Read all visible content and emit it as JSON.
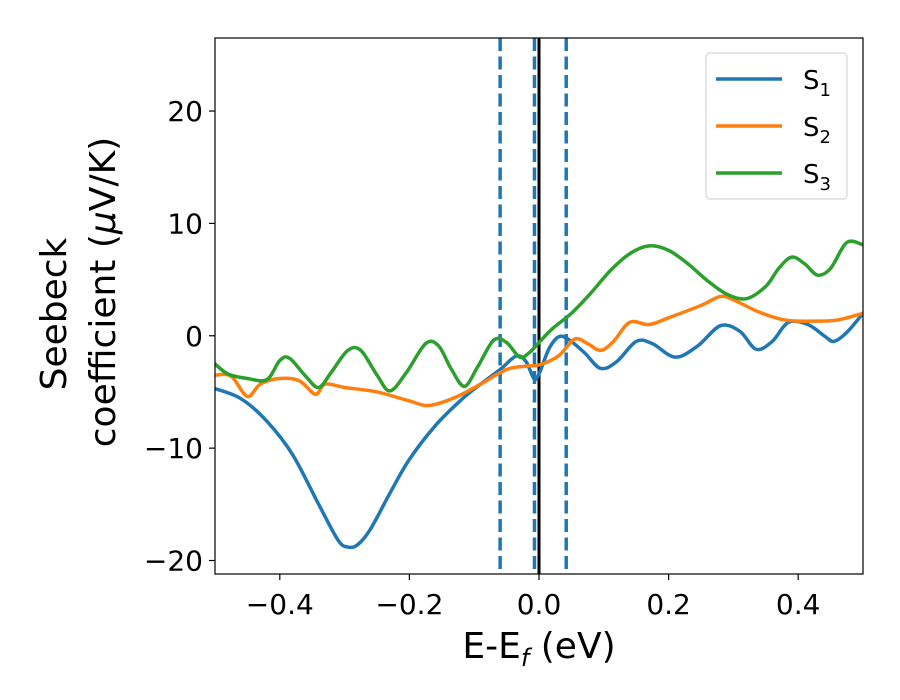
{
  "chart_data": {
    "type": "line",
    "xlabel": "E-E",
    "xlabel_sub": "f",
    "xlabel_unit": " (eV)",
    "ylabel_line1": "Seebeck",
    "ylabel_line2_a": "coefficient  (",
    "ylabel_mu": "μ",
    "ylabel_line2_b": "V/K)",
    "xlim": [
      -0.5,
      0.5
    ],
    "ylim": [
      -21.2,
      26.5
    ],
    "xticks": [
      -0.4,
      -0.2,
      0.0,
      0.2,
      0.4
    ],
    "xtick_labels": [
      "−0.4",
      "−0.2",
      "0.0",
      "0.2",
      "0.4"
    ],
    "yticks": [
      -20,
      -10,
      0,
      10,
      20
    ],
    "ytick_labels": [
      "−20",
      "−10",
      "0",
      "10",
      "20"
    ],
    "grid": false,
    "legend_position": "top-right",
    "vlines": [
      {
        "x": -0.06,
        "style": "dashed",
        "color": "#1f77b4"
      },
      {
        "x": -0.007,
        "style": "dashed",
        "color": "#1f77b4"
      },
      {
        "x": 0.0,
        "style": "solid",
        "color": "#000000"
      },
      {
        "x": 0.042,
        "style": "dashed",
        "color": "#1f77b4"
      }
    ],
    "series": [
      {
        "name": "S",
        "sub": "1",
        "color": "#1f77b4",
        "points": [
          [
            -0.5,
            -4.7
          ],
          [
            -0.46,
            -5.6
          ],
          [
            -0.42,
            -7.6
          ],
          [
            -0.38,
            -10.6
          ],
          [
            -0.34,
            -15.0
          ],
          [
            -0.31,
            -18.2
          ],
          [
            -0.295,
            -18.8
          ],
          [
            -0.28,
            -18.6
          ],
          [
            -0.26,
            -17.2
          ],
          [
            -0.23,
            -14.0
          ],
          [
            -0.2,
            -11.0
          ],
          [
            -0.16,
            -8.0
          ],
          [
            -0.12,
            -5.7
          ],
          [
            -0.09,
            -4.3
          ],
          [
            -0.06,
            -3.0
          ],
          [
            -0.035,
            -1.8
          ],
          [
            -0.02,
            -2.3
          ],
          [
            -0.008,
            -3.8
          ],
          [
            0.0,
            -3.4
          ],
          [
            0.015,
            -1.2
          ],
          [
            0.03,
            -0.1
          ],
          [
            0.045,
            -0.3
          ],
          [
            0.07,
            -1.5
          ],
          [
            0.095,
            -2.9
          ],
          [
            0.12,
            -2.3
          ],
          [
            0.15,
            -0.5
          ],
          [
            0.175,
            -0.7
          ],
          [
            0.21,
            -1.9
          ],
          [
            0.245,
            -0.9
          ],
          [
            0.28,
            0.9
          ],
          [
            0.31,
            0.4
          ],
          [
            0.335,
            -1.2
          ],
          [
            0.36,
            -0.5
          ],
          [
            0.385,
            1.2
          ],
          [
            0.415,
            1.0
          ],
          [
            0.44,
            0.0
          ],
          [
            0.455,
            -0.5
          ],
          [
            0.475,
            0.3
          ],
          [
            0.5,
            2.0
          ]
        ]
      },
      {
        "name": "S",
        "sub": "2",
        "color": "#ff7f0e",
        "points": [
          [
            -0.5,
            -3.5
          ],
          [
            -0.475,
            -3.6
          ],
          [
            -0.45,
            -5.4
          ],
          [
            -0.43,
            -4.3
          ],
          [
            -0.4,
            -3.8
          ],
          [
            -0.37,
            -4.0
          ],
          [
            -0.345,
            -5.2
          ],
          [
            -0.33,
            -4.3
          ],
          [
            -0.3,
            -4.6
          ],
          [
            -0.25,
            -5.0
          ],
          [
            -0.2,
            -5.8
          ],
          [
            -0.17,
            -6.2
          ],
          [
            -0.13,
            -5.5
          ],
          [
            -0.09,
            -4.3
          ],
          [
            -0.05,
            -3.0
          ],
          [
            -0.02,
            -2.7
          ],
          [
            0.0,
            -2.6
          ],
          [
            0.03,
            -1.8
          ],
          [
            0.055,
            -0.3
          ],
          [
            0.075,
            -0.7
          ],
          [
            0.095,
            -1.3
          ],
          [
            0.115,
            -0.5
          ],
          [
            0.14,
            1.2
          ],
          [
            0.17,
            1.0
          ],
          [
            0.2,
            1.6
          ],
          [
            0.25,
            2.7
          ],
          [
            0.28,
            3.5
          ],
          [
            0.3,
            3.2
          ],
          [
            0.34,
            2.1
          ],
          [
            0.38,
            1.4
          ],
          [
            0.42,
            1.3
          ],
          [
            0.46,
            1.4
          ],
          [
            0.5,
            2.0
          ]
        ]
      },
      {
        "name": "S",
        "sub": "3",
        "color": "#2ca02c",
        "points": [
          [
            -0.5,
            -2.5
          ],
          [
            -0.48,
            -3.4
          ],
          [
            -0.45,
            -3.8
          ],
          [
            -0.42,
            -3.9
          ],
          [
            -0.4,
            -2.2
          ],
          [
            -0.385,
            -2.0
          ],
          [
            -0.36,
            -3.6
          ],
          [
            -0.34,
            -4.6
          ],
          [
            -0.32,
            -3.2
          ],
          [
            -0.295,
            -1.3
          ],
          [
            -0.275,
            -1.3
          ],
          [
            -0.25,
            -3.5
          ],
          [
            -0.23,
            -4.9
          ],
          [
            -0.205,
            -3.3
          ],
          [
            -0.175,
            -0.7
          ],
          [
            -0.155,
            -0.9
          ],
          [
            -0.135,
            -3.0
          ],
          [
            -0.115,
            -4.5
          ],
          [
            -0.095,
            -2.8
          ],
          [
            -0.07,
            -0.4
          ],
          [
            -0.05,
            -0.6
          ],
          [
            -0.03,
            -1.9
          ],
          [
            -0.015,
            -1.5
          ],
          [
            0.0,
            -0.6
          ],
          [
            0.02,
            0.6
          ],
          [
            0.05,
            2.0
          ],
          [
            0.08,
            3.8
          ],
          [
            0.11,
            5.8
          ],
          [
            0.14,
            7.3
          ],
          [
            0.17,
            8.0
          ],
          [
            0.2,
            7.6
          ],
          [
            0.23,
            6.4
          ],
          [
            0.26,
            4.9
          ],
          [
            0.29,
            3.7
          ],
          [
            0.32,
            3.3
          ],
          [
            0.35,
            4.4
          ],
          [
            0.37,
            6.0
          ],
          [
            0.39,
            7.0
          ],
          [
            0.41,
            6.4
          ],
          [
            0.43,
            5.4
          ],
          [
            0.45,
            6.0
          ],
          [
            0.475,
            8.3
          ],
          [
            0.5,
            8.1
          ]
        ]
      }
    ]
  }
}
